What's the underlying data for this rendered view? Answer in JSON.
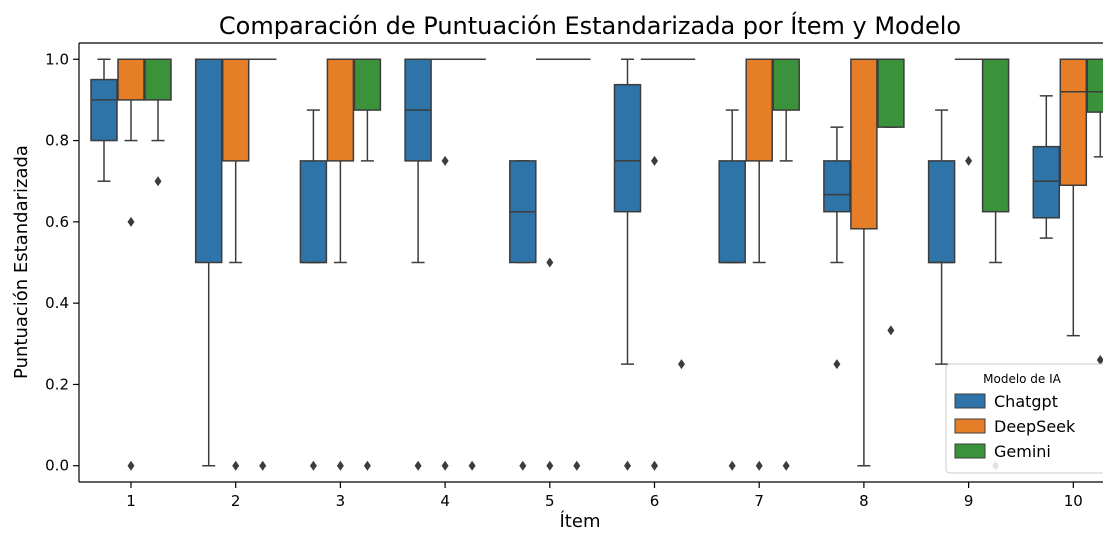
{
  "chart_data": {
    "type": "boxplot",
    "title": "Comparación de Puntuación Estandarizada por Ítem y Modelo",
    "xlabel": "Ítem",
    "ylabel": "Puntuación Estandarizada",
    "categories": [
      "1",
      "2",
      "3",
      "4",
      "5",
      "6",
      "7",
      "8",
      "9",
      "10"
    ],
    "ylim": [
      -0.04,
      1.04
    ],
    "yticks": [
      "0.0",
      "0.2",
      "0.4",
      "0.6",
      "0.8",
      "1.0"
    ],
    "grid": false,
    "legend": {
      "title": "Modelo de IA",
      "placement": "lower-right"
    },
    "series": [
      {
        "name": "Chatgpt",
        "color": "#2f74a8",
        "boxes": [
          {
            "q1": 0.8,
            "median": 0.9,
            "q3": 0.95,
            "whisker_low": 0.7,
            "whisker_high": 1.0,
            "outliers": []
          },
          {
            "q1": 0.5,
            "median": 1.0,
            "q3": 1.0,
            "whisker_low": 0.0,
            "whisker_high": 1.0,
            "outliers": []
          },
          {
            "q1": 0.5,
            "median": 0.5,
            "q3": 0.75,
            "whisker_low": 0.5,
            "whisker_high": 0.875,
            "outliers": [
              0.0
            ]
          },
          {
            "q1": 0.75,
            "median": 0.875,
            "q3": 1.0,
            "whisker_low": 0.5,
            "whisker_high": 1.0,
            "outliers": [
              0.0
            ]
          },
          {
            "q1": 0.5,
            "median": 0.625,
            "q3": 0.75,
            "whisker_low": 0.5,
            "whisker_high": 0.75,
            "outliers": [
              0.0
            ]
          },
          {
            "q1": 0.625,
            "median": 0.75,
            "q3": 0.9375,
            "whisker_low": 0.25,
            "whisker_high": 1.0,
            "outliers": [
              0.0
            ]
          },
          {
            "q1": 0.5,
            "median": 0.5,
            "q3": 0.75,
            "whisker_low": 0.5,
            "whisker_high": 0.875,
            "outliers": [
              0.0
            ]
          },
          {
            "q1": 0.625,
            "median": 0.667,
            "q3": 0.75,
            "whisker_low": 0.5,
            "whisker_high": 0.833,
            "outliers": [
              0.25
            ]
          },
          {
            "q1": 0.5,
            "median": 0.5,
            "q3": 0.75,
            "whisker_low": 0.25,
            "whisker_high": 0.875,
            "outliers": []
          },
          {
            "q1": 0.61,
            "median": 0.7,
            "q3": 0.785,
            "whisker_low": 0.56,
            "whisker_high": 0.91,
            "outliers": []
          }
        ]
      },
      {
        "name": "DeepSeek",
        "color": "#e67e27",
        "boxes": [
          {
            "q1": 0.9,
            "median": 1.0,
            "q3": 1.0,
            "whisker_low": 0.8,
            "whisker_high": 1.0,
            "outliers": [
              0.6,
              0.0
            ]
          },
          {
            "q1": 0.75,
            "median": 1.0,
            "q3": 1.0,
            "whisker_low": 0.5,
            "whisker_high": 1.0,
            "outliers": [
              0.0
            ]
          },
          {
            "q1": 0.75,
            "median": 1.0,
            "q3": 1.0,
            "whisker_low": 0.5,
            "whisker_high": 1.0,
            "outliers": [
              0.0
            ]
          },
          {
            "q1": 1.0,
            "median": 1.0,
            "q3": 1.0,
            "whisker_low": 1.0,
            "whisker_high": 1.0,
            "outliers": [
              0.75,
              0.0
            ]
          },
          {
            "q1": 1.0,
            "median": 1.0,
            "q3": 1.0,
            "whisker_low": 1.0,
            "whisker_high": 1.0,
            "outliers": [
              0.5,
              0.0
            ]
          },
          {
            "q1": 1.0,
            "median": 1.0,
            "q3": 1.0,
            "whisker_low": 1.0,
            "whisker_high": 1.0,
            "outliers": [
              0.75,
              0.0
            ]
          },
          {
            "q1": 0.75,
            "median": 1.0,
            "q3": 1.0,
            "whisker_low": 0.5,
            "whisker_high": 1.0,
            "outliers": [
              0.0
            ]
          },
          {
            "q1": 0.583,
            "median": 1.0,
            "q3": 1.0,
            "whisker_low": 0.0,
            "whisker_high": 1.0,
            "outliers": []
          },
          {
            "q1": 1.0,
            "median": 1.0,
            "q3": 1.0,
            "whisker_low": 1.0,
            "whisker_high": 1.0,
            "outliers": [
              0.75
            ]
          },
          {
            "q1": 0.69,
            "median": 0.92,
            "q3": 1.0,
            "whisker_low": 0.32,
            "whisker_high": 1.0,
            "outliers": []
          }
        ]
      },
      {
        "name": "Gemini",
        "color": "#3a923a",
        "boxes": [
          {
            "q1": 0.9,
            "median": 1.0,
            "q3": 1.0,
            "whisker_low": 0.8,
            "whisker_high": 1.0,
            "outliers": [
              0.7
            ]
          },
          {
            "q1": 1.0,
            "median": 1.0,
            "q3": 1.0,
            "whisker_low": 1.0,
            "whisker_high": 1.0,
            "outliers": [
              0.0
            ]
          },
          {
            "q1": 0.875,
            "median": 1.0,
            "q3": 1.0,
            "whisker_low": 0.75,
            "whisker_high": 1.0,
            "outliers": [
              0.0
            ]
          },
          {
            "q1": 1.0,
            "median": 1.0,
            "q3": 1.0,
            "whisker_low": 1.0,
            "whisker_high": 1.0,
            "outliers": [
              0.0
            ]
          },
          {
            "q1": 1.0,
            "median": 1.0,
            "q3": 1.0,
            "whisker_low": 1.0,
            "whisker_high": 1.0,
            "outliers": [
              0.0
            ]
          },
          {
            "q1": 1.0,
            "median": 1.0,
            "q3": 1.0,
            "whisker_low": 1.0,
            "whisker_high": 1.0,
            "outliers": [
              0.25
            ]
          },
          {
            "q1": 0.875,
            "median": 1.0,
            "q3": 1.0,
            "whisker_low": 0.75,
            "whisker_high": 1.0,
            "outliers": [
              0.0
            ]
          },
          {
            "q1": 0.833,
            "median": 1.0,
            "q3": 1.0,
            "whisker_low": 0.833,
            "whisker_high": 1.0,
            "outliers": [
              0.333
            ]
          },
          {
            "q1": 0.625,
            "median": 1.0,
            "q3": 1.0,
            "whisker_low": 0.5,
            "whisker_high": 1.0,
            "outliers": [
              0.0
            ]
          },
          {
            "q1": 0.87,
            "median": 0.92,
            "q3": 1.0,
            "whisker_low": 0.76,
            "whisker_high": 1.0,
            "outliers": [
              0.26
            ]
          }
        ]
      }
    ]
  }
}
